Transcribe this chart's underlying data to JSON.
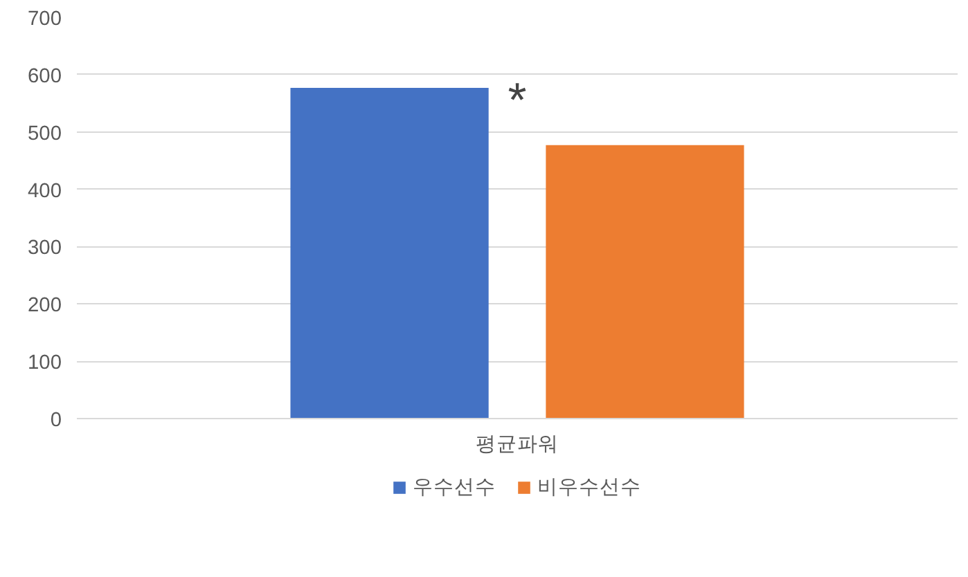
{
  "chart_data": {
    "type": "bar",
    "categories": [
      "평균파워"
    ],
    "series": [
      {
        "name": "우수선수",
        "color": "#4472c4",
        "values": [
          577
        ]
      },
      {
        "name": "비우수선수",
        "color": "#ed7d31",
        "values": [
          477
        ]
      }
    ],
    "ylim": [
      0,
      700
    ],
    "yticks": [
      0,
      100,
      200,
      300,
      400,
      500,
      600,
      700
    ],
    "grid": "y",
    "legend": "bottom",
    "annotations": [
      "*"
    ]
  }
}
